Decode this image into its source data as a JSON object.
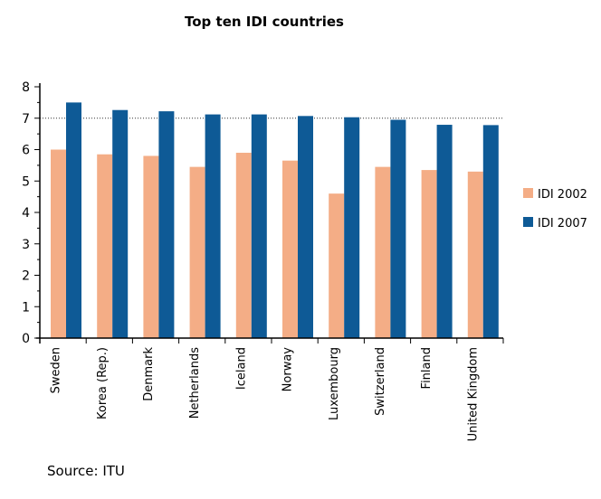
{
  "chart_data": {
    "type": "bar",
    "title": "Top ten IDI countries",
    "categories": [
      "Sweden",
      "Korea (Rep.)",
      "Denmark",
      "Netherlands",
      "Iceland",
      "Norway",
      "Luxembourg",
      "Switzerland",
      "Finland",
      "United Kingdom"
    ],
    "series": [
      {
        "name": "IDI 2002",
        "color": "#f4ad86",
        "values": [
          6.0,
          5.85,
          5.8,
          5.45,
          5.9,
          5.65,
          4.6,
          5.45,
          5.35,
          5.3
        ]
      },
      {
        "name": "IDI 2007",
        "color": "#0e5a96",
        "values": [
          7.5,
          7.26,
          7.22,
          7.12,
          7.12,
          7.07,
          7.03,
          6.95,
          6.79,
          6.78
        ]
      }
    ],
    "ylim": [
      0,
      8
    ],
    "yticks": [
      0,
      1,
      2,
      3,
      4,
      5,
      6,
      7,
      8
    ],
    "reference_line": 7,
    "legend_position": "right",
    "grid": false
  },
  "source": "Source: ITU"
}
